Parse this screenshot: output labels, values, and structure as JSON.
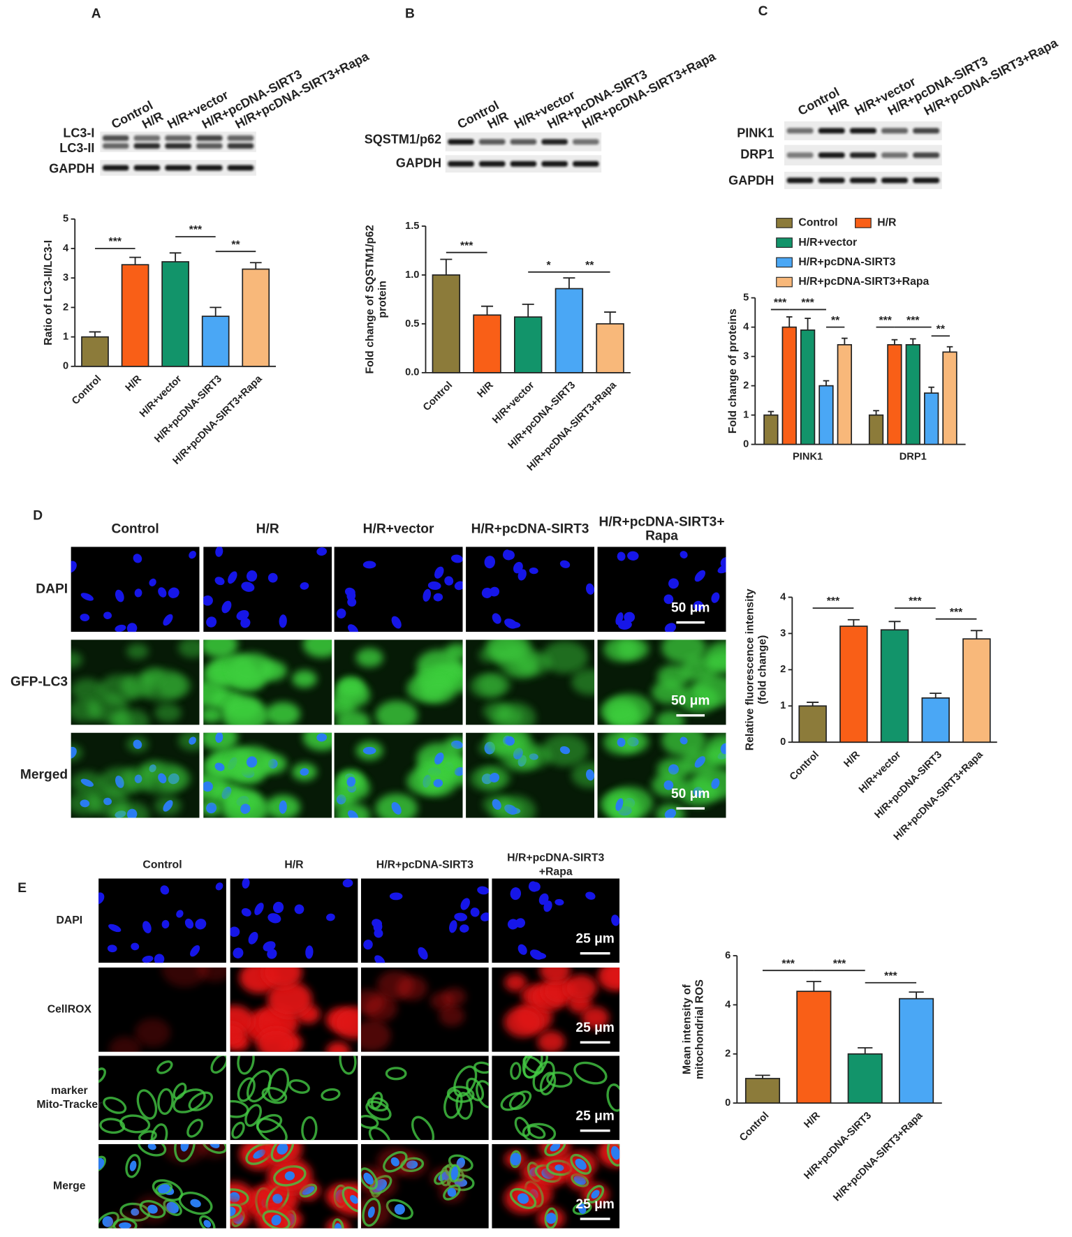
{
  "panel_labels": [
    "A",
    "B",
    "C",
    "D",
    "E"
  ],
  "blots": [
    {
      "rows": [
        "LC3-I",
        "LC3-II",
        "GAPDH"
      ]
    },
    {
      "rows": [
        "SQSTM1/p62",
        "GAPDH"
      ]
    },
    {
      "rows": [
        "PINK1",
        "DRP1",
        "GAPDH"
      ]
    }
  ],
  "chart_data": [
    {
      "type": "bar",
      "categories": [
        "Control",
        "H/R",
        "H/R+vector",
        "H/R+pcDNA-SIRT3",
        "H/R+pcDNA-SIRT3+Rapa"
      ],
      "values": [
        1,
        3.45,
        3.55,
        1.7,
        3.3
      ],
      "errors": [
        0.17,
        0.25,
        0.3,
        0.3,
        0.22
      ],
      "colors": [
        "#8c7b3a",
        "#f95f17",
        "#12946a",
        "#4aa7f5",
        "#f8b87a"
      ],
      "ylabel": [
        "Ratio of LC3-II/LC3-I"
      ],
      "ylim": [
        0,
        5
      ],
      "yticks": [
        0,
        1,
        2,
        3,
        4,
        5
      ],
      "annotations": [
        "***",
        "***",
        "**"
      ]
    },
    {
      "type": "bar",
      "categories": [
        "Control",
        "H/R",
        "H/R+vector",
        "H/R+pcDNA-SIRT3",
        "H/R+pcDNA-SIRT3+Rapa"
      ],
      "values": [
        1.0,
        0.59,
        0.57,
        0.86,
        0.5
      ],
      "errors": [
        0.16,
        0.09,
        0.13,
        0.11,
        0.12
      ],
      "colors": [
        "#8c7b3a",
        "#f95f17",
        "#12946a",
        "#4aa7f5",
        "#f8b87a"
      ],
      "ylabel": [
        "Fold change of SQSTM1/p62",
        "protein"
      ],
      "ylim": [
        0,
        1.5
      ],
      "yticks": [
        {
          "value": 0,
          "label": "0.0"
        },
        {
          "value": 0.5,
          "label": "0.5"
        },
        {
          "value": 1,
          "label": "1.0"
        },
        {
          "value": 1.5,
          "label": "1.5"
        }
      ],
      "annotations": [
        "***",
        "*",
        "**"
      ]
    },
    {
      "type": "bar",
      "categories": [
        "PINK1",
        "DRP1"
      ],
      "series": [
        {
          "name": "Control",
          "color": "#8c7b3a",
          "values": [
            1,
            1
          ],
          "errors": [
            0.12,
            0.15
          ]
        },
        {
          "name": "H/R",
          "color": "#f95f17",
          "values": [
            4,
            3.4
          ],
          "errors": [
            0.35,
            0.17
          ]
        },
        {
          "name": "H/R+vector",
          "color": "#12946a",
          "values": [
            3.9,
            3.4
          ],
          "errors": [
            0.4,
            0.2
          ]
        },
        {
          "name": "H/R+pcDNA-SIRT3",
          "color": "#4aa7f5",
          "values": [
            2,
            1.75
          ],
          "errors": [
            0.17,
            0.2
          ]
        },
        {
          "name": "H/R+pcDNA-SIRT3+Rapa",
          "color": "#f8b87a",
          "values": [
            3.4,
            3.15
          ],
          "errors": [
            0.22,
            0.18
          ]
        }
      ],
      "ylabel": [
        "Fold change of proteins"
      ],
      "ylim": [
        0,
        5
      ],
      "yticks": [
        0,
        1,
        2,
        3,
        4,
        5
      ],
      "annotations": [
        "***",
        "***",
        "**",
        "***",
        "***",
        "**"
      ]
    },
    {
      "type": "bar",
      "categories": [
        "Control",
        "H/R",
        "H/R+vector",
        "H/R+pcDNA-SIRT3",
        "H/R+pcDNA-SIRT3+Rapa"
      ],
      "values": [
        1,
        3.2,
        3.1,
        1.22,
        2.85
      ],
      "errors": [
        0.1,
        0.18,
        0.23,
        0.13,
        0.23
      ],
      "colors": [
        "#8c7b3a",
        "#f95f17",
        "#12946a",
        "#4aa7f5",
        "#f8b87a"
      ],
      "ylabel": [
        "Relative fluorescence intensity",
        "(fold change)"
      ],
      "ylim": [
        0,
        4
      ],
      "yticks": [
        0,
        1,
        2,
        3,
        4
      ],
      "annotations": [
        "***",
        "***",
        "***"
      ]
    },
    {
      "type": "bar",
      "categories": [
        "Control",
        "H/R",
        "H/R+pcDNA-SIRT3",
        "H/R+pcDNA-SIRT3+Rapa"
      ],
      "values": [
        1,
        4.55,
        2,
        4.25
      ],
      "errors": [
        0.13,
        0.4,
        0.25,
        0.27
      ],
      "colors": [
        "#8c7b3a",
        "#f95f17",
        "#12946a",
        "#4aa7f5"
      ],
      "ylabel": [
        "Mean  intensity of",
        "mitochondrial ROS"
      ],
      "ylim": [
        0,
        6
      ],
      "yticks": [
        0,
        2,
        4,
        6
      ],
      "annotations": [
        "***",
        "***",
        "***"
      ]
    }
  ],
  "images": [
    {
      "columns": [
        "Control",
        "H/R",
        "H/R+vector",
        "H/R+pcDNA-SIRT3",
        [
          "H/R+pcDNA-SIRT3+",
          "Rapa"
        ]
      ],
      "rows": [
        "DAPI",
        "GFP-LC3",
        "Merged"
      ],
      "scale_bar": "50 μm"
    },
    {
      "columns": [
        "Control",
        "H/R",
        "H/R+pcDNA-SIRT3",
        [
          "H/R+pcDNA-SIRT3",
          "+Rapa"
        ]
      ],
      "rows": [
        "DAPI",
        "CellROX",
        [
          "marker",
          "Mito-Tracker"
        ],
        "Merge"
      ],
      "scale_bar": "25 μm"
    }
  ]
}
